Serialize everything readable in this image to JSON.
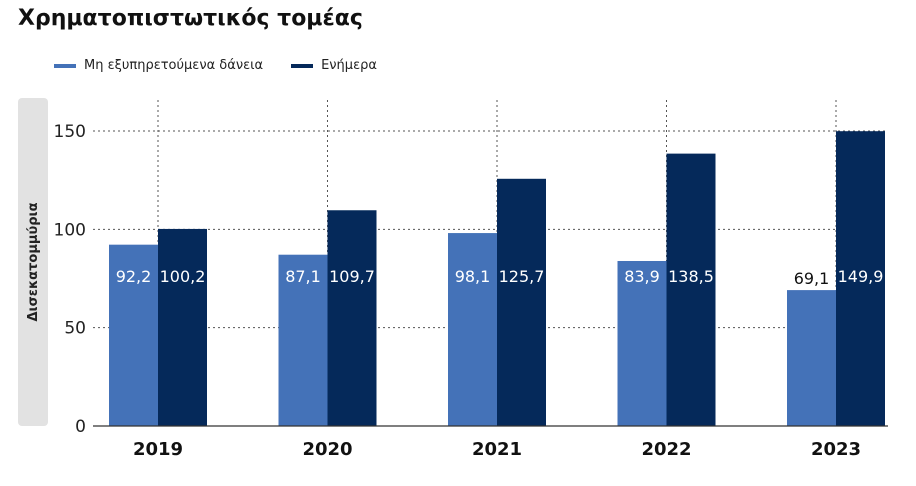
{
  "chart_data": {
    "type": "bar",
    "title": "Χρηματοπιστωτικός τομέας",
    "ylabel": "Δισεκατομμύρια",
    "categories": [
      "2019",
      "2020",
      "2021",
      "2022",
      "2023"
    ],
    "series": [
      {
        "name": "Μη εξυπηρετούμενα δάνεια",
        "color": "#4472b8",
        "values": [
          92.2,
          87.1,
          98.1,
          83.9,
          69.1
        ],
        "labels": [
          "92,2",
          "87,1",
          "98,1",
          "83,9",
          "69,1"
        ]
      },
      {
        "name": "Ενήμερα",
        "color": "#05295a",
        "values": [
          100.2,
          109.7,
          125.7,
          138.5,
          149.9
        ],
        "labels": [
          "100,2",
          "109,7",
          "125,7",
          "138,5",
          "149,9"
        ]
      }
    ],
    "ylim": [
      0,
      150
    ],
    "yticks": [
      0,
      50,
      100,
      150
    ],
    "grid": "dotted",
    "legend_position": "top-left"
  }
}
